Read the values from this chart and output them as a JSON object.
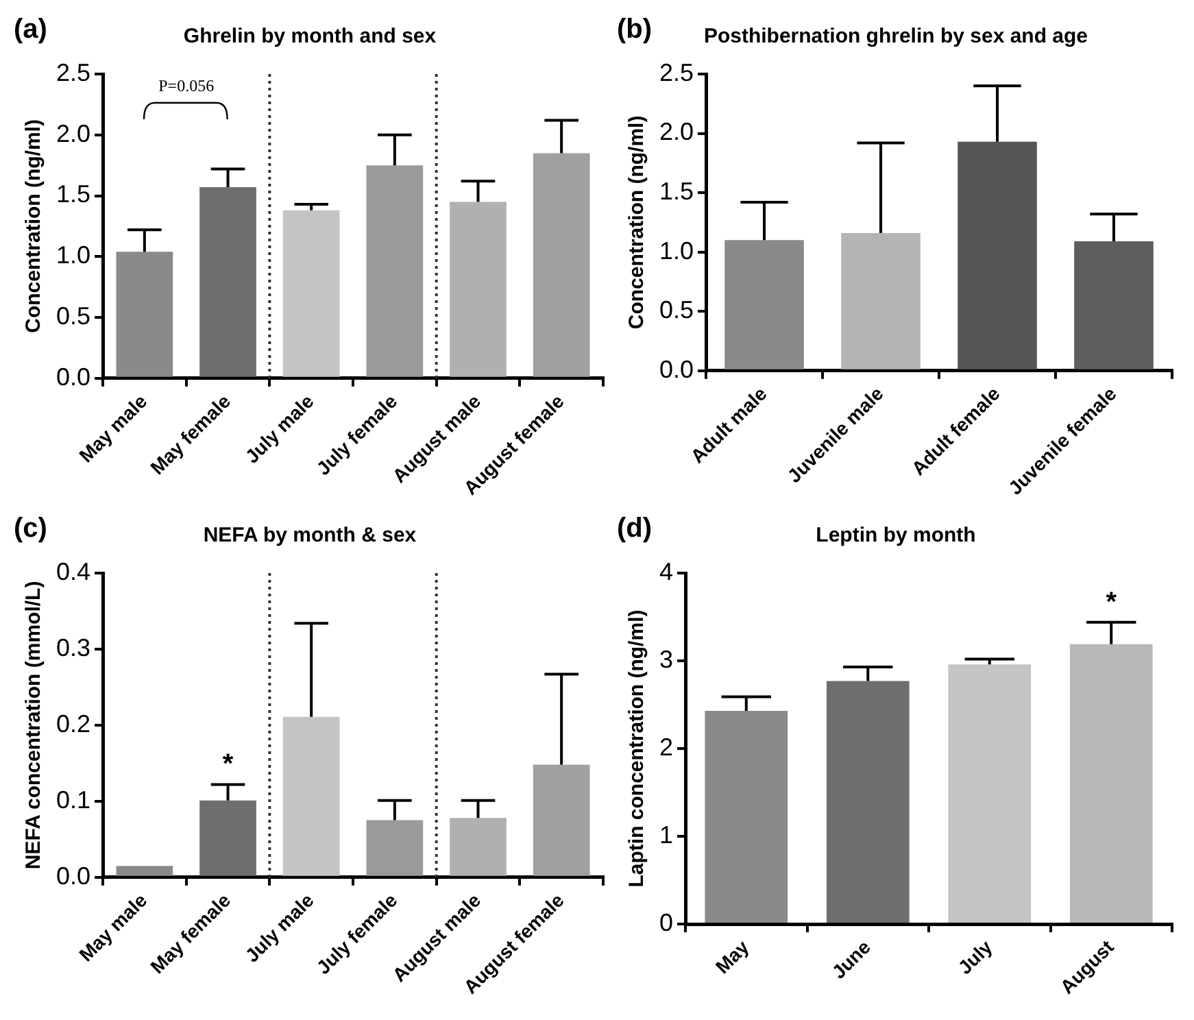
{
  "chart_data": [
    {
      "type": "bar",
      "title": "Ghrelin by month and sex",
      "ylabel": "Concentration (ng/ml)",
      "categories": [
        "May male",
        "May female",
        "July male",
        "July female",
        "August male",
        "August female"
      ],
      "values": [
        1.04,
        1.57,
        1.38,
        1.75,
        1.45,
        1.85
      ],
      "colors": [
        "#8a8a8a",
        "#6e6e6e",
        "#c4c4c4",
        "#9a9a9a",
        "#b0b0b0",
        "#a0a0a0"
      ],
      "errors": [
        [
          1.04,
          1.22
        ],
        [
          1.57,
          1.72
        ],
        [
          1.38,
          1.43
        ],
        [
          1.75,
          2.0
        ],
        [
          1.45,
          1.62
        ],
        [
          1.85,
          2.12
        ]
      ],
      "ylim": [
        0,
        2.5
      ],
      "yticks": [
        {
          "value": 0,
          "label": "0.0"
        },
        0.5,
        {
          "value": 1,
          "label": "1.0"
        },
        1.5,
        {
          "value": 2,
          "label": "2.0"
        },
        2.5
      ],
      "annotations": [
        "(a)",
        "P=0.056"
      ]
    },
    {
      "type": "bar",
      "title": "Posthibernation ghrelin by sex and age",
      "ylabel": "Concentration (ng/ml)",
      "categories": [
        "Adult male",
        "Juvenile male",
        "Adult female",
        "Juvenile female"
      ],
      "values": [
        1.1,
        1.16,
        1.93,
        1.09
      ],
      "colors": [
        "#8a8a8a",
        "#b4b4b4",
        "#555555",
        "#5e5e5e"
      ],
      "errors": [
        [
          1.1,
          1.42
        ],
        [
          1.16,
          1.92
        ],
        [
          1.93,
          2.4
        ],
        [
          1.09,
          1.32
        ]
      ],
      "ylim": [
        0,
        2.5
      ],
      "yticks": [
        {
          "value": 0,
          "label": "0.0"
        },
        0.5,
        {
          "value": 1,
          "label": "1.0"
        },
        1.5,
        {
          "value": 2,
          "label": "2.0"
        },
        2.5
      ],
      "annotations": [
        "(b)"
      ]
    },
    {
      "type": "bar",
      "title": "NEFA by month & sex",
      "ylabel": "NEFA concentration (mmol/L)",
      "categories": [
        "May male",
        "May female",
        "July male",
        "July female",
        "August male",
        "August female"
      ],
      "values": [
        0.015,
        0.101,
        0.211,
        0.075,
        0.078,
        0.148
      ],
      "colors": [
        "#8a8a8a",
        "#6e6e6e",
        "#c4c4c4",
        "#9a9a9a",
        "#b0b0b0",
        "#a0a0a0"
      ],
      "errors": [
        null,
        [
          0.101,
          0.122
        ],
        [
          0.211,
          0.334
        ],
        [
          0.075,
          0.101
        ],
        [
          0.078,
          0.101
        ],
        [
          0.148,
          0.267
        ]
      ],
      "ylim": [
        0,
        0.4
      ],
      "yticks": [
        {
          "value": 0,
          "label": "0.0"
        },
        0.1,
        0.2,
        0.3,
        0.4
      ],
      "annotations": [
        "(c)",
        "*"
      ]
    },
    {
      "type": "bar",
      "title": "Leptin by month",
      "ylabel": "Laptin concentration (ng/ml)",
      "categories": [
        "May",
        "June",
        "July",
        "August"
      ],
      "values": [
        2.43,
        2.77,
        2.96,
        3.19
      ],
      "colors": [
        "#8a8a8a",
        "#6e6e6e",
        "#c4c4c4",
        "#b8b8b8"
      ],
      "errors": [
        [
          2.43,
          2.59
        ],
        [
          2.77,
          2.93
        ],
        [
          2.96,
          3.02
        ],
        [
          3.19,
          3.44
        ]
      ],
      "ylim": [
        0,
        4
      ],
      "yticks": [
        0,
        1,
        2,
        3,
        4
      ],
      "annotations": [
        "(d)",
        "*"
      ]
    }
  ]
}
